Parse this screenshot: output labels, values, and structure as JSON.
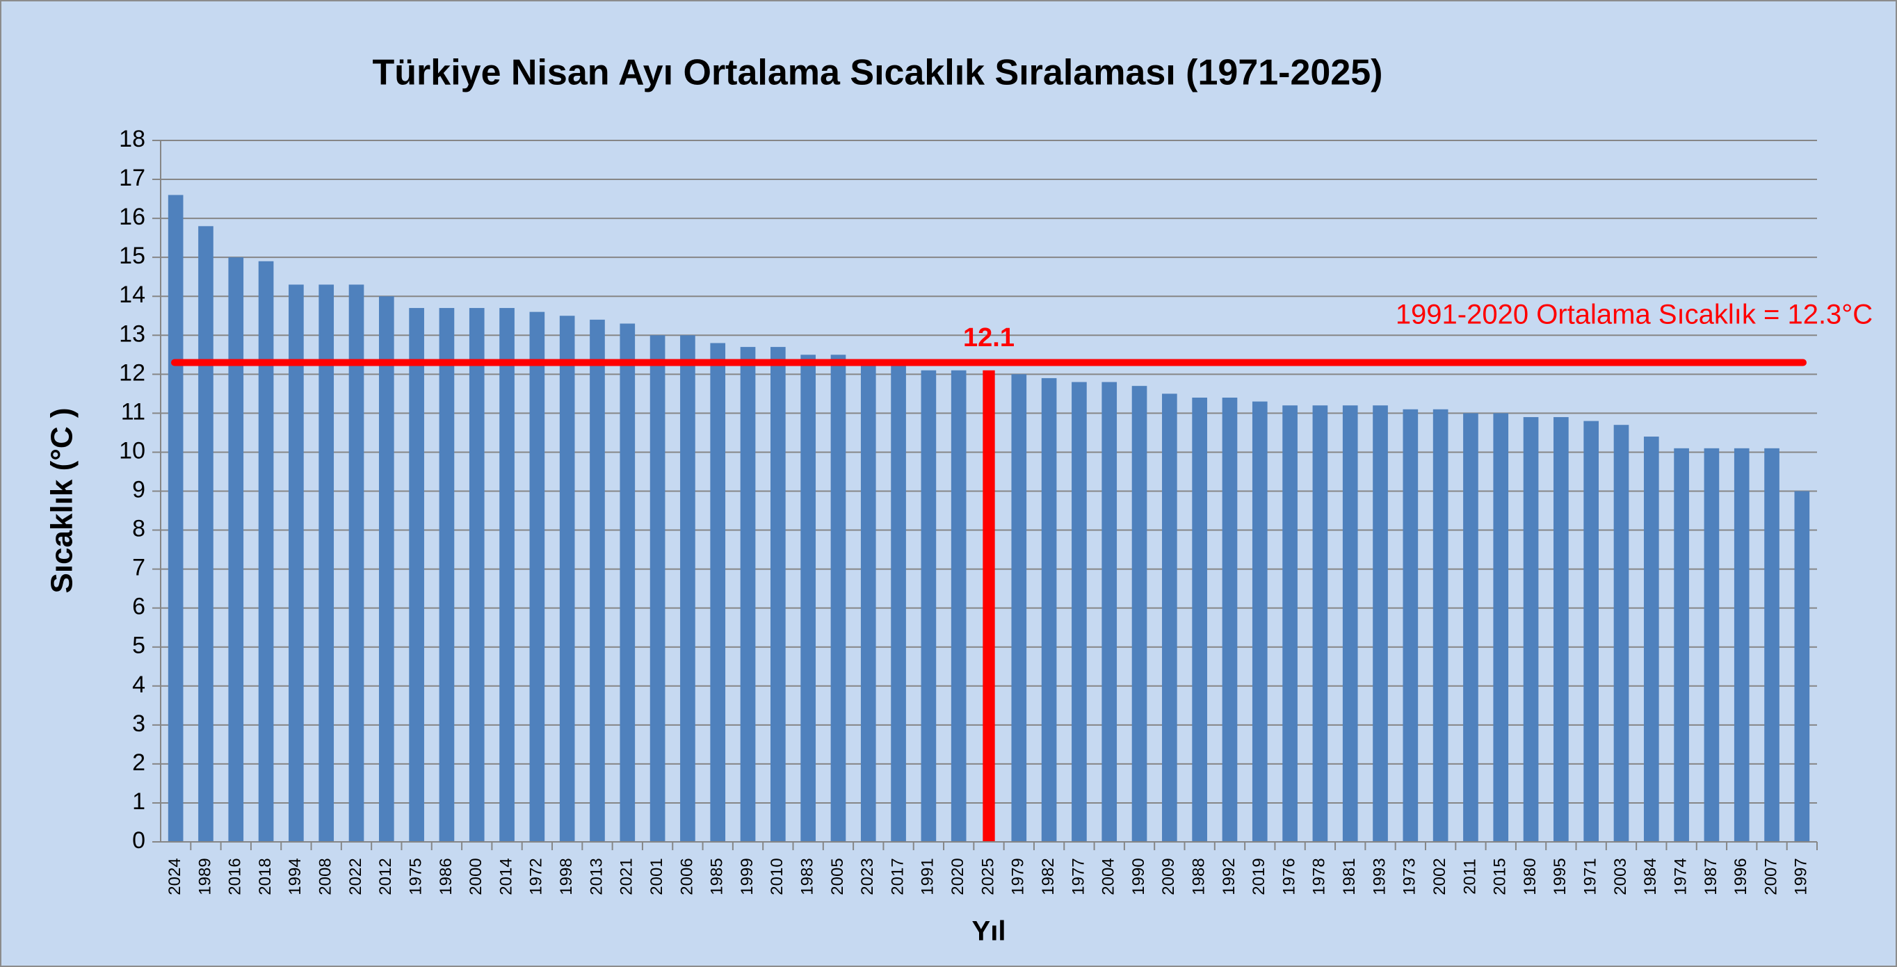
{
  "chart_data": {
    "type": "bar",
    "title": "Türkiye Nisan Ayı Ortalama Sıcaklık Sıralaması (1971-2025)",
    "x_label": "Yıl",
    "y_label": "Sıcaklık (°C )",
    "categories": [
      "2024",
      "1989",
      "2016",
      "2018",
      "1994",
      "2008",
      "2022",
      "2012",
      "1975",
      "1986",
      "2000",
      "2014",
      "1972",
      "1998",
      "2013",
      "2021",
      "2001",
      "2006",
      "1985",
      "1999",
      "2010",
      "1983",
      "2005",
      "2023",
      "2017",
      "1991",
      "2020",
      "2025",
      "1979",
      "1982",
      "1977",
      "2004",
      "1990",
      "2009",
      "1988",
      "1992",
      "2019",
      "1976",
      "1978",
      "1981",
      "1993",
      "1973",
      "2002",
      "2011",
      "2015",
      "1980",
      "1995",
      "1971",
      "2003",
      "1984",
      "1974",
      "1987",
      "1996",
      "2007",
      "1997"
    ],
    "values": [
      16.6,
      15.8,
      15.0,
      14.9,
      14.3,
      14.3,
      14.3,
      14.0,
      13.7,
      13.7,
      13.7,
      13.7,
      13.6,
      13.5,
      13.4,
      13.3,
      13.0,
      13.0,
      12.8,
      12.7,
      12.7,
      12.5,
      12.5,
      12.3,
      12.3,
      12.1,
      12.1,
      12.1,
      12.0,
      11.9,
      11.8,
      11.8,
      11.7,
      11.5,
      11.4,
      11.4,
      11.3,
      11.2,
      11.2,
      11.2,
      11.2,
      11.1,
      11.1,
      11.0,
      11.0,
      10.9,
      10.9,
      10.8,
      10.7,
      10.4,
      10.1,
      10.1,
      10.1,
      10.1,
      9.0
    ],
    "value_labels": [
      null,
      null,
      null,
      null,
      null,
      null,
      null,
      null,
      null,
      null,
      null,
      null,
      null,
      null,
      null,
      null,
      null,
      null,
      null,
      null,
      null,
      null,
      null,
      null,
      null,
      null,
      null,
      "12.1",
      null,
      null,
      null,
      null,
      null,
      null,
      null,
      null,
      null,
      null,
      null,
      null,
      null,
      null,
      null,
      null,
      null,
      null,
      null,
      null,
      null,
      null,
      null,
      null,
      null,
      null,
      null
    ],
    "color": "#4f81bd",
    "highlight_color": "#ff0000",
    "reference_line": {
      "value": 12.3,
      "label": "1991-2020 Ortalama Sıcaklık = 12.3°C",
      "color": "#ff0000"
    },
    "ylim": [
      0,
      18
    ],
    "yticks": [
      0,
      1,
      2,
      3,
      4,
      5,
      6,
      7,
      8,
      9,
      10,
      11,
      12,
      13,
      14,
      15,
      16,
      17,
      18
    ],
    "grid": true
  }
}
